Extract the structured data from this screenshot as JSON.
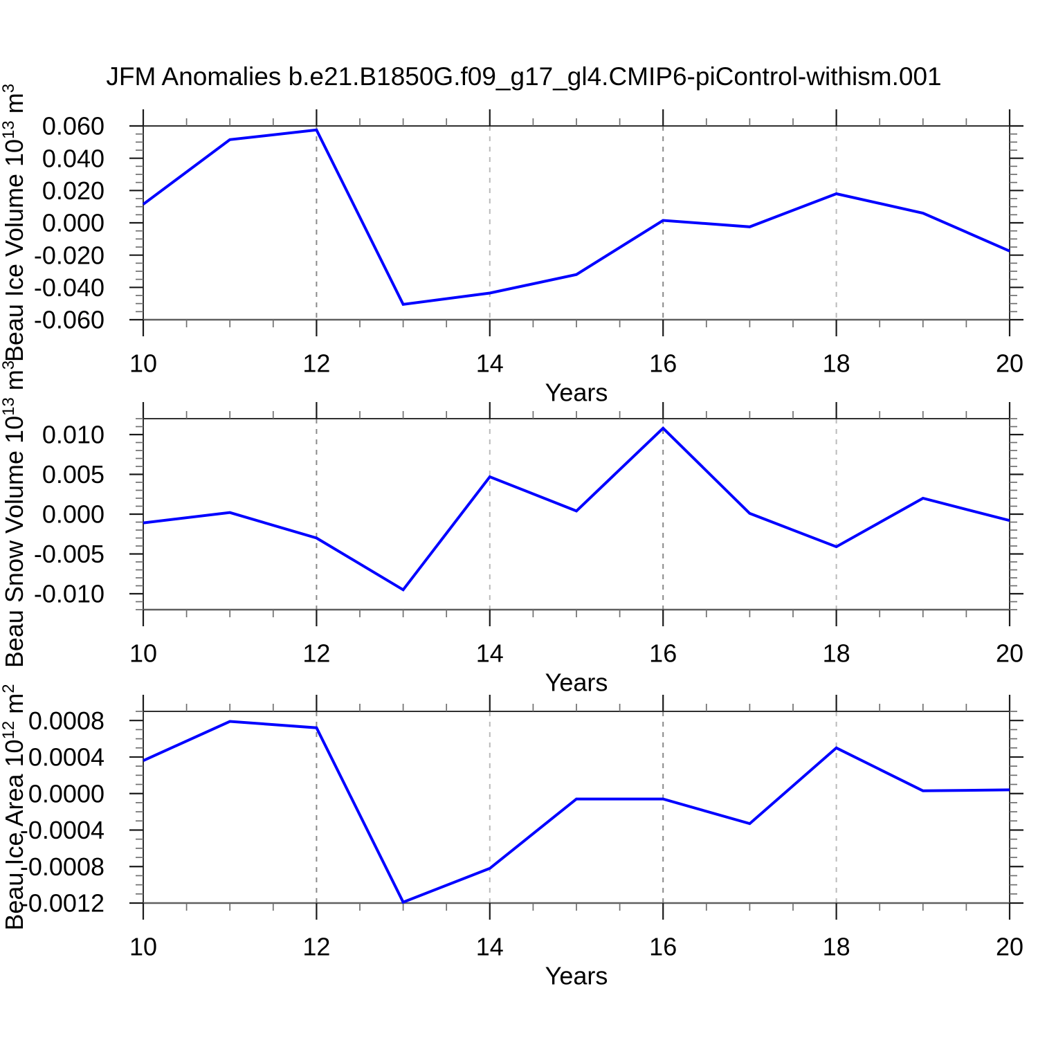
{
  "title": "JFM Anomalies b.e21.B1850G.f09_g17_gl4.CMIP6-piControl-withism.001",
  "series_color": "#0000ff",
  "background": "#ffffff",
  "axis_color": "#2f2f2f",
  "tick_major_color": "#1a1a1a",
  "tick_minor_color": "#6f6f6f",
  "x_range": [
    10,
    20
  ],
  "x_major_ticks": [
    10,
    12,
    14,
    16,
    18,
    20
  ],
  "x_tick_labels": [
    "10",
    "12",
    "14",
    "16",
    "18",
    "20"
  ],
  "x_minor_step": 0.5,
  "gridlines": [
    {
      "x": 12,
      "color": "#898989"
    },
    {
      "x": 14,
      "color": "#bababa"
    },
    {
      "x": 16,
      "color": "#898989"
    },
    {
      "x": 18,
      "color": "#bababa"
    }
  ],
  "chart_data": [
    {
      "id": "beau-ice-volume",
      "type": "line",
      "title": "",
      "xlabel": "Years",
      "ylabel_text": "Beau Ice Volume 10^13 m^3",
      "ylabel_segments": [
        {
          "t": "Beau Ice Volume 10"
        },
        {
          "t": "13",
          "sup": true
        },
        {
          "t": " m"
        },
        {
          "t": "3",
          "sup": true
        }
      ],
      "x": [
        10,
        11,
        12,
        13,
        14,
        15,
        16,
        17,
        18,
        19,
        20
      ],
      "values": [
        0.0115,
        0.0515,
        0.0575,
        -0.0505,
        -0.0435,
        -0.032,
        0.0015,
        -0.0025,
        0.018,
        0.006,
        -0.0175
      ],
      "ylim": [
        -0.06,
        0.06
      ],
      "y_major_ticks": [
        {
          "v": 0.06,
          "label": "0.060"
        },
        {
          "v": 0.04,
          "label": "0.040"
        },
        {
          "v": 0.02,
          "label": "0.020"
        },
        {
          "v": 0.0,
          "label": "0.000"
        },
        {
          "v": -0.02,
          "label": "-0.020"
        },
        {
          "v": -0.04,
          "label": "-0.040"
        },
        {
          "v": -0.06,
          "label": "-0.060"
        }
      ],
      "y_minor_step": 0.005
    },
    {
      "id": "beau-snow-volume",
      "type": "line",
      "title": "",
      "xlabel": "Years",
      "ylabel_text": "Beau Snow Volume 10^13 m^3",
      "ylabel_segments": [
        {
          "t": "Beau Snow Volume 10"
        },
        {
          "t": "13",
          "sup": true
        },
        {
          "t": " m"
        },
        {
          "t": "3",
          "sup": true
        }
      ],
      "x": [
        10,
        11,
        12,
        13,
        14,
        15,
        16,
        17,
        18,
        19,
        20
      ],
      "values": [
        -0.0011,
        0.0002,
        -0.003,
        -0.0095,
        0.0047,
        0.0004,
        0.0108,
        0.0001,
        -0.0041,
        0.002,
        -0.0008
      ],
      "ylim": [
        -0.012,
        0.012
      ],
      "y_major_ticks": [
        {
          "v": 0.01,
          "label": "0.010"
        },
        {
          "v": 0.005,
          "label": "0.005"
        },
        {
          "v": 0.0,
          "label": "0.000"
        },
        {
          "v": -0.005,
          "label": "-0.005"
        },
        {
          "v": -0.01,
          "label": "-0.010"
        }
      ],
      "y_minor_step": 0.001
    },
    {
      "id": "beau-ice-area",
      "type": "line",
      "title": "",
      "xlabel": "Years",
      "ylabel_text": "Beau Ice Area 10^12 m^2",
      "ylabel_segments": [
        {
          "t": "Beau Ice Area 10"
        },
        {
          "t": "12",
          "sup": true
        },
        {
          "t": " m"
        },
        {
          "t": "2",
          "sup": true
        }
      ],
      "x": [
        10,
        11,
        12,
        13,
        14,
        15,
        16,
        17,
        18,
        19,
        20
      ],
      "values": [
        0.00036,
        0.00079,
        0.00072,
        -0.00119,
        -0.00082,
        -6e-05,
        -6e-05,
        -0.00033,
        0.0005,
        3e-05,
        4e-05
      ],
      "ylim": [
        -0.0012,
        0.0009
      ],
      "y_major_ticks": [
        {
          "v": 0.0008,
          "label": "0.0008"
        },
        {
          "v": 0.0004,
          "label": "0.0004"
        },
        {
          "v": 0.0,
          "label": "0.0000"
        },
        {
          "v": -0.0004,
          "label": "-0.0004"
        },
        {
          "v": -0.0008,
          "label": "-0.0008"
        },
        {
          "v": -0.0012,
          "label": "-0.0012"
        }
      ],
      "y_minor_step": 0.0001
    }
  ]
}
